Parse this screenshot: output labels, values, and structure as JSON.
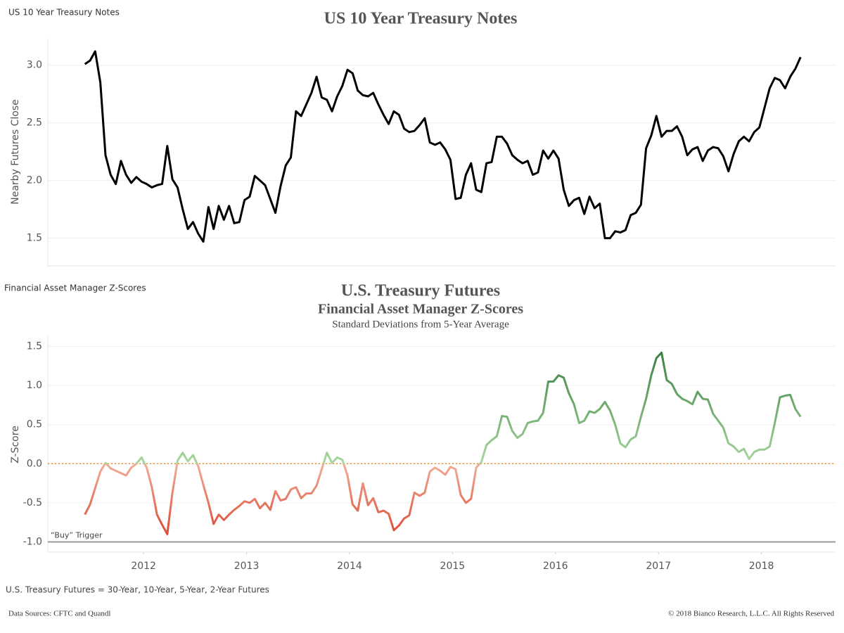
{
  "chart_data": [
    {
      "type": "line",
      "sheet_label": "US 10 Year Treasury Notes",
      "title": "US 10 Year Treasury Notes",
      "y_label": "Nearby Futures Close",
      "xlim": [
        2011.07,
        2018.72
      ],
      "ylim": [
        1.26,
        3.23
      ],
      "yticks": [
        {
          "value": 1.5,
          "label": "1.5"
        },
        {
          "value": 2,
          "label": "2.0"
        },
        {
          "value": 2.5,
          "label": "2.5"
        },
        {
          "value": 3,
          "label": "3.0"
        }
      ],
      "grid": true,
      "x": [
        2011.43,
        2011.48,
        2011.53,
        2011.58,
        2011.63,
        2011.68,
        2011.73,
        2011.78,
        2011.83,
        2011.88,
        2011.93,
        2011.98,
        2012.03,
        2012.08,
        2012.13,
        2012.18,
        2012.23,
        2012.28,
        2012.33,
        2012.38,
        2012.43,
        2012.48,
        2012.53,
        2012.58,
        2012.63,
        2012.68,
        2012.73,
        2012.78,
        2012.83,
        2012.88,
        2012.93,
        2012.98,
        2013.03,
        2013.08,
        2013.13,
        2013.18,
        2013.23,
        2013.28,
        2013.33,
        2013.38,
        2013.43,
        2013.48,
        2013.53,
        2013.58,
        2013.63,
        2013.68,
        2013.73,
        2013.78,
        2013.83,
        2013.88,
        2013.93,
        2013.98,
        2014.03,
        2014.08,
        2014.13,
        2014.18,
        2014.23,
        2014.28,
        2014.33,
        2014.38,
        2014.43,
        2014.48,
        2014.53,
        2014.58,
        2014.63,
        2014.68,
        2014.73,
        2014.78,
        2014.83,
        2014.88,
        2014.93,
        2014.98,
        2015.03,
        2015.08,
        2015.13,
        2015.18,
        2015.23,
        2015.28,
        2015.33,
        2015.38,
        2015.43,
        2015.48,
        2015.53,
        2015.58,
        2015.63,
        2015.68,
        2015.73,
        2015.78,
        2015.83,
        2015.88,
        2015.93,
        2015.98,
        2016.03,
        2016.08,
        2016.13,
        2016.18,
        2016.23,
        2016.28,
        2016.33,
        2016.38,
        2016.43,
        2016.48,
        2016.53,
        2016.58,
        2016.63,
        2016.68,
        2016.73,
        2016.78,
        2016.83,
        2016.88,
        2016.93,
        2016.98,
        2017.03,
        2017.08,
        2017.13,
        2017.18,
        2017.23,
        2017.28,
        2017.33,
        2017.38,
        2017.43,
        2017.48,
        2017.53,
        2017.58,
        2017.63,
        2017.68,
        2017.73,
        2017.78,
        2017.83,
        2017.88,
        2017.93,
        2017.98,
        2018.03,
        2018.08,
        2018.13,
        2018.18,
        2018.23,
        2018.28,
        2018.33,
        2018.38
      ],
      "series": [
        {
          "name": "Nearby Futures Close",
          "color": "#000000",
          "values": [
            3.01,
            3.04,
            3.12,
            2.85,
            2.22,
            2.05,
            1.97,
            2.17,
            2.05,
            1.98,
            2.03,
            1.99,
            1.97,
            1.94,
            1.96,
            1.97,
            2.3,
            2.01,
            1.94,
            1.75,
            1.58,
            1.64,
            1.54,
            1.47,
            1.77,
            1.58,
            1.78,
            1.66,
            1.78,
            1.63,
            1.64,
            1.83,
            1.86,
            2.04,
            2.0,
            1.96,
            1.84,
            1.72,
            1.95,
            2.13,
            2.2,
            2.6,
            2.56,
            2.66,
            2.76,
            2.9,
            2.72,
            2.7,
            2.6,
            2.73,
            2.82,
            2.96,
            2.93,
            2.78,
            2.74,
            2.73,
            2.76,
            2.66,
            2.57,
            2.49,
            2.6,
            2.57,
            2.45,
            2.42,
            2.43,
            2.48,
            2.54,
            2.33,
            2.31,
            2.33,
            2.27,
            2.18,
            1.84,
            1.85,
            2.05,
            2.15,
            1.92,
            1.9,
            2.15,
            2.16,
            2.38,
            2.38,
            2.32,
            2.22,
            2.18,
            2.15,
            2.17,
            2.05,
            2.07,
            2.26,
            2.19,
            2.26,
            2.19,
            1.92,
            1.78,
            1.83,
            1.85,
            1.71,
            1.86,
            1.76,
            1.8,
            1.5,
            1.5,
            1.56,
            1.55,
            1.57,
            1.7,
            1.72,
            1.79,
            2.28,
            2.39,
            2.56,
            2.38,
            2.43,
            2.43,
            2.47,
            2.38,
            2.22,
            2.27,
            2.29,
            2.17,
            2.26,
            2.29,
            2.28,
            2.21,
            2.08,
            2.23,
            2.34,
            2.38,
            2.34,
            2.42,
            2.46,
            2.63,
            2.8,
            2.89,
            2.87,
            2.8,
            2.9,
            2.97,
            3.07
          ]
        }
      ]
    },
    {
      "type": "line",
      "sheet_label": "Financial Asset Manager Z-Scores",
      "title": "U.S. Treasury Futures",
      "subtitle": "Financial Asset Manager Z-Scores",
      "subtitle2": "Standard Deviations from 5-Year Average",
      "y_label": "Z-Score",
      "xlim": [
        2011.07,
        2018.72
      ],
      "xticks": [
        2012,
        2013,
        2014,
        2015,
        2016,
        2017,
        2018
      ],
      "ylim": [
        -1.13,
        1.63
      ],
      "yticks": [
        {
          "value": -1,
          "label": "-1.0"
        },
        {
          "value": -0.5,
          "label": "-0.5"
        },
        {
          "value": 0,
          "label": "0.0"
        },
        {
          "value": 0.5,
          "label": "0.5"
        },
        {
          "value": 1,
          "label": "1.0"
        },
        {
          "value": 1.5,
          "label": "1.5"
        }
      ],
      "grid": true,
      "color_scale": {
        "negative": "#d8321f",
        "near_zero_negative": "#f2ad96",
        "near_zero_positive": "#a9d89f",
        "positive": "#2a7434"
      },
      "reference_lines": [
        {
          "value": 0,
          "color": "#e0912a",
          "style": "dotted"
        },
        {
          "value": -1,
          "color": "#9a9a9a",
          "style": "solid",
          "label": "“Buy” Trigger"
        }
      ],
      "x": [
        2011.43,
        2011.48,
        2011.53,
        2011.58,
        2011.63,
        2011.68,
        2011.73,
        2011.78,
        2011.83,
        2011.88,
        2011.93,
        2011.98,
        2012.03,
        2012.08,
        2012.13,
        2012.18,
        2012.23,
        2012.28,
        2012.33,
        2012.38,
        2012.43,
        2012.48,
        2012.53,
        2012.58,
        2012.63,
        2012.68,
        2012.73,
        2012.78,
        2012.83,
        2012.88,
        2012.93,
        2012.98,
        2013.03,
        2013.08,
        2013.13,
        2013.18,
        2013.23,
        2013.28,
        2013.33,
        2013.38,
        2013.43,
        2013.48,
        2013.53,
        2013.58,
        2013.63,
        2013.68,
        2013.73,
        2013.78,
        2013.83,
        2013.88,
        2013.93,
        2013.98,
        2014.03,
        2014.08,
        2014.13,
        2014.18,
        2014.23,
        2014.28,
        2014.33,
        2014.38,
        2014.43,
        2014.48,
        2014.53,
        2014.58,
        2014.63,
        2014.68,
        2014.73,
        2014.78,
        2014.83,
        2014.88,
        2014.93,
        2014.98,
        2015.03,
        2015.08,
        2015.13,
        2015.18,
        2015.23,
        2015.28,
        2015.33,
        2015.38,
        2015.43,
        2015.48,
        2015.53,
        2015.58,
        2015.63,
        2015.68,
        2015.73,
        2015.78,
        2015.83,
        2015.88,
        2015.93,
        2015.98,
        2016.03,
        2016.08,
        2016.13,
        2016.18,
        2016.23,
        2016.28,
        2016.33,
        2016.38,
        2016.43,
        2016.48,
        2016.53,
        2016.58,
        2016.63,
        2016.68,
        2016.73,
        2016.78,
        2016.83,
        2016.88,
        2016.93,
        2016.98,
        2017.03,
        2017.08,
        2017.13,
        2017.18,
        2017.23,
        2017.28,
        2017.33,
        2017.38,
        2017.43,
        2017.48,
        2017.53,
        2017.58,
        2017.63,
        2017.68,
        2017.73,
        2017.78,
        2017.83,
        2017.88,
        2017.93,
        2017.98,
        2018.03,
        2018.08,
        2018.13,
        2018.18,
        2018.23,
        2018.28,
        2018.33,
        2018.38
      ],
      "series": [
        {
          "name": "Z-Score",
          "values": [
            -0.65,
            -0.52,
            -0.31,
            -0.1,
            0.01,
            -0.06,
            -0.09,
            -0.12,
            -0.15,
            -0.05,
            0.0,
            0.08,
            -0.05,
            -0.3,
            -0.65,
            -0.78,
            -0.9,
            -0.37,
            0.04,
            0.14,
            0.03,
            0.11,
            -0.03,
            -0.27,
            -0.5,
            -0.77,
            -0.65,
            -0.72,
            -0.65,
            -0.59,
            -0.54,
            -0.48,
            -0.5,
            -0.45,
            -0.57,
            -0.5,
            -0.59,
            -0.35,
            -0.47,
            -0.45,
            -0.33,
            -0.3,
            -0.44,
            -0.38,
            -0.38,
            -0.28,
            -0.07,
            0.14,
            0.01,
            0.08,
            0.05,
            -0.15,
            -0.52,
            -0.6,
            -0.25,
            -0.53,
            -0.44,
            -0.62,
            -0.6,
            -0.64,
            -0.85,
            -0.79,
            -0.7,
            -0.66,
            -0.37,
            -0.41,
            -0.37,
            -0.1,
            -0.05,
            -0.09,
            -0.14,
            -0.04,
            -0.07,
            -0.4,
            -0.5,
            -0.45,
            -0.05,
            0.02,
            0.24,
            0.3,
            0.35,
            0.61,
            0.6,
            0.42,
            0.33,
            0.38,
            0.52,
            0.54,
            0.55,
            0.65,
            1.05,
            1.05,
            1.13,
            1.1,
            0.9,
            0.76,
            0.52,
            0.55,
            0.67,
            0.65,
            0.7,
            0.79,
            0.68,
            0.5,
            0.26,
            0.21,
            0.31,
            0.35,
            0.6,
            0.83,
            1.13,
            1.35,
            1.42,
            1.07,
            1.02,
            0.89,
            0.83,
            0.8,
            0.76,
            0.92,
            0.83,
            0.82,
            0.64,
            0.55,
            0.46,
            0.26,
            0.22,
            0.15,
            0.19,
            0.06,
            0.15,
            0.18,
            0.18,
            0.22,
            0.52,
            0.85,
            0.87,
            0.88,
            0.7,
            0.6
          ]
        }
      ]
    }
  ],
  "footer": {
    "note": "U.S. Treasury Futures = 30-Year, 10-Year, 5-Year, 2-Year Futures",
    "sources": "Data Sources: CFTC and Quandl",
    "copyright": "© 2018 Bianco Research, L.L.C. All Rights Reserved"
  }
}
